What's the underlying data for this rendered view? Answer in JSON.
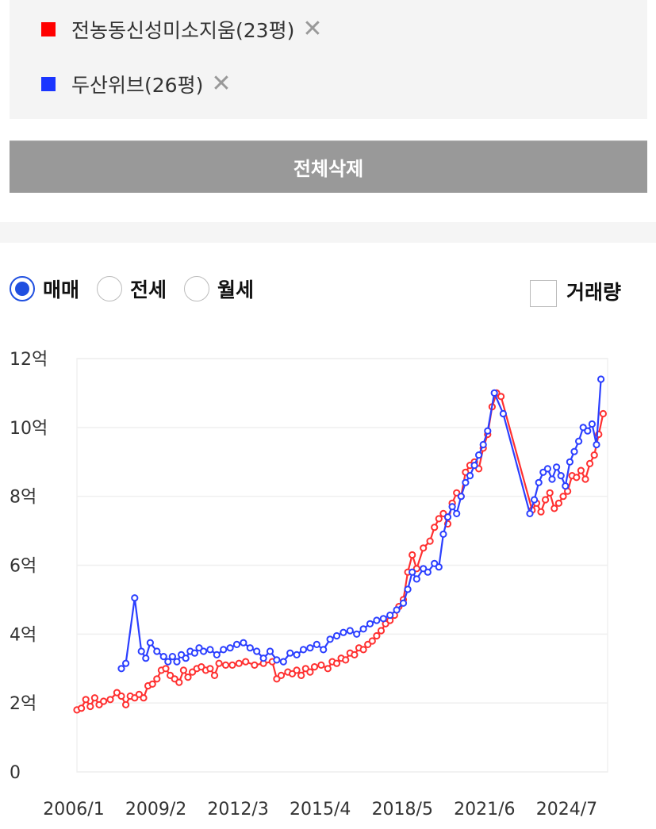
{
  "legend": {
    "items": [
      {
        "name": "전농동신성미소지움(23평)",
        "color": "#ff0000",
        "remove": "✕"
      },
      {
        "name": "두산위브(26평)",
        "color": "#1a35ff",
        "remove": "✕"
      }
    ]
  },
  "delete_all_label": "전체삭제",
  "filters": {
    "options": [
      {
        "label": "매매",
        "selected": true
      },
      {
        "label": "전세",
        "selected": false
      },
      {
        "label": "월세",
        "selected": false
      }
    ],
    "volume_label": "거래량",
    "volume_checked": false
  },
  "chart_data": {
    "type": "line",
    "title": "",
    "xlabel": "",
    "ylabel": "",
    "y_unit": "억",
    "ylim": [
      0,
      12
    ],
    "yticks": [
      0,
      2,
      4,
      6,
      8,
      10,
      12
    ],
    "ytick_labels": [
      "0",
      "2억",
      "4억",
      "6억",
      "8억",
      "10억",
      "12억"
    ],
    "xlim": [
      "2006-01",
      "2025-12"
    ],
    "xticks": [
      "2006-01",
      "2009-02",
      "2012-03",
      "2015-04",
      "2018-05",
      "2021-06",
      "2024-07"
    ],
    "xtick_labels": [
      "2006/1",
      "2009/2",
      "2012/3",
      "2015/4",
      "2018/5",
      "2021/6",
      "2024/7"
    ],
    "grid": true,
    "series": [
      {
        "name": "전농동신성미소지움(23평)",
        "color": "#ff3030",
        "points": [
          [
            "2006-01",
            1.8
          ],
          [
            "2006-03",
            1.85
          ],
          [
            "2006-05",
            2.1
          ],
          [
            "2006-07",
            1.9
          ],
          [
            "2006-09",
            2.15
          ],
          [
            "2006-11",
            1.95
          ],
          [
            "2007-01",
            2.05
          ],
          [
            "2007-04",
            2.1
          ],
          [
            "2007-07",
            2.3
          ],
          [
            "2007-09",
            2.2
          ],
          [
            "2007-11",
            1.95
          ],
          [
            "2008-01",
            2.2
          ],
          [
            "2008-03",
            2.15
          ],
          [
            "2008-05",
            2.25
          ],
          [
            "2008-07",
            2.15
          ],
          [
            "2008-09",
            2.5
          ],
          [
            "2008-11",
            2.55
          ],
          [
            "2009-01",
            2.7
          ],
          [
            "2009-03",
            2.95
          ],
          [
            "2009-05",
            3.0
          ],
          [
            "2009-07",
            2.8
          ],
          [
            "2009-09",
            2.7
          ],
          [
            "2009-11",
            2.6
          ],
          [
            "2010-01",
            2.95
          ],
          [
            "2010-03",
            2.75
          ],
          [
            "2010-05",
            2.9
          ],
          [
            "2010-07",
            3.0
          ],
          [
            "2010-09",
            3.05
          ],
          [
            "2010-11",
            2.95
          ],
          [
            "2011-01",
            3.0
          ],
          [
            "2011-03",
            2.8
          ],
          [
            "2011-05",
            3.15
          ],
          [
            "2011-08",
            3.1
          ],
          [
            "2011-11",
            3.1
          ],
          [
            "2012-02",
            3.15
          ],
          [
            "2012-05",
            3.2
          ],
          [
            "2012-09",
            3.1
          ],
          [
            "2013-01",
            3.15
          ],
          [
            "2013-05",
            3.2
          ],
          [
            "2013-07",
            2.7
          ],
          [
            "2013-09",
            2.8
          ],
          [
            "2013-12",
            2.9
          ],
          [
            "2014-02",
            2.85
          ],
          [
            "2014-04",
            2.95
          ],
          [
            "2014-06",
            2.8
          ],
          [
            "2014-08",
            3.0
          ],
          [
            "2014-10",
            2.9
          ],
          [
            "2014-12",
            3.05
          ],
          [
            "2015-03",
            3.1
          ],
          [
            "2015-06",
            3.0
          ],
          [
            "2015-08",
            3.2
          ],
          [
            "2015-10",
            3.15
          ],
          [
            "2015-12",
            3.3
          ],
          [
            "2016-02",
            3.25
          ],
          [
            "2016-04",
            3.45
          ],
          [
            "2016-06",
            3.4
          ],
          [
            "2016-08",
            3.6
          ],
          [
            "2016-10",
            3.55
          ],
          [
            "2016-12",
            3.7
          ],
          [
            "2017-02",
            3.8
          ],
          [
            "2017-04",
            3.95
          ],
          [
            "2017-06",
            4.1
          ],
          [
            "2017-08",
            4.3
          ],
          [
            "2017-10",
            4.4
          ],
          [
            "2017-12",
            4.55
          ],
          [
            "2018-02",
            4.8
          ],
          [
            "2018-04",
            5.0
          ],
          [
            "2018-06",
            5.8
          ],
          [
            "2018-08",
            6.3
          ],
          [
            "2018-10",
            5.9
          ],
          [
            "2019-01",
            6.5
          ],
          [
            "2019-04",
            6.7
          ],
          [
            "2019-06",
            7.1
          ],
          [
            "2019-08",
            7.35
          ],
          [
            "2019-10",
            7.5
          ],
          [
            "2019-12",
            7.2
          ],
          [
            "2020-02",
            7.8
          ],
          [
            "2020-04",
            8.1
          ],
          [
            "2020-06",
            8.0
          ],
          [
            "2020-08",
            8.7
          ],
          [
            "2020-10",
            8.9
          ],
          [
            "2020-12",
            9.0
          ],
          [
            "2021-02",
            8.8
          ],
          [
            "2021-04",
            9.4
          ],
          [
            "2021-06",
            9.8
          ],
          [
            "2021-08",
            10.6
          ],
          [
            "2021-10",
            11.0
          ],
          [
            "2021-12",
            10.9
          ],
          [
            "2023-02",
            7.6
          ],
          [
            "2023-04",
            7.8
          ],
          [
            "2023-06",
            7.55
          ],
          [
            "2023-08",
            7.9
          ],
          [
            "2023-10",
            8.1
          ],
          [
            "2023-12",
            7.65
          ],
          [
            "2024-02",
            7.8
          ],
          [
            "2024-04",
            8.0
          ],
          [
            "2024-06",
            8.15
          ],
          [
            "2024-08",
            8.6
          ],
          [
            "2024-10",
            8.55
          ],
          [
            "2024-12",
            8.75
          ],
          [
            "2025-02",
            8.5
          ],
          [
            "2025-04",
            8.95
          ],
          [
            "2025-06",
            9.2
          ],
          [
            "2025-08",
            9.8
          ],
          [
            "2025-10",
            10.4
          ]
        ]
      },
      {
        "name": "두산위브(26평)",
        "color": "#2b3fff",
        "points": [
          [
            "2007-09",
            3.0
          ],
          [
            "2007-11",
            3.15
          ],
          [
            "2008-03",
            5.05
          ],
          [
            "2008-06",
            3.5
          ],
          [
            "2008-08",
            3.3
          ],
          [
            "2008-10",
            3.75
          ],
          [
            "2009-01",
            3.5
          ],
          [
            "2009-04",
            3.35
          ],
          [
            "2009-06",
            3.2
          ],
          [
            "2009-08",
            3.35
          ],
          [
            "2009-10",
            3.2
          ],
          [
            "2009-12",
            3.4
          ],
          [
            "2010-02",
            3.3
          ],
          [
            "2010-04",
            3.5
          ],
          [
            "2010-06",
            3.45
          ],
          [
            "2010-08",
            3.6
          ],
          [
            "2010-10",
            3.5
          ],
          [
            "2011-01",
            3.55
          ],
          [
            "2011-04",
            3.4
          ],
          [
            "2011-07",
            3.55
          ],
          [
            "2011-10",
            3.6
          ],
          [
            "2012-01",
            3.7
          ],
          [
            "2012-04",
            3.75
          ],
          [
            "2012-07",
            3.6
          ],
          [
            "2012-10",
            3.5
          ],
          [
            "2013-01",
            3.3
          ],
          [
            "2013-04",
            3.5
          ],
          [
            "2013-07",
            3.25
          ],
          [
            "2013-10",
            3.2
          ],
          [
            "2014-01",
            3.45
          ],
          [
            "2014-04",
            3.4
          ],
          [
            "2014-07",
            3.55
          ],
          [
            "2014-10",
            3.6
          ],
          [
            "2015-01",
            3.7
          ],
          [
            "2015-04",
            3.55
          ],
          [
            "2015-07",
            3.85
          ],
          [
            "2015-10",
            3.95
          ],
          [
            "2016-01",
            4.05
          ],
          [
            "2016-04",
            4.1
          ],
          [
            "2016-07",
            4.0
          ],
          [
            "2016-10",
            4.15
          ],
          [
            "2017-01",
            4.3
          ],
          [
            "2017-04",
            4.4
          ],
          [
            "2017-07",
            4.45
          ],
          [
            "2017-10",
            4.55
          ],
          [
            "2018-01",
            4.7
          ],
          [
            "2018-04",
            4.9
          ],
          [
            "2018-06",
            5.3
          ],
          [
            "2018-08",
            5.8
          ],
          [
            "2018-10",
            5.6
          ],
          [
            "2019-01",
            5.9
          ],
          [
            "2019-03",
            5.8
          ],
          [
            "2019-06",
            6.05
          ],
          [
            "2019-08",
            5.95
          ],
          [
            "2019-10",
            6.9
          ],
          [
            "2019-12",
            7.4
          ],
          [
            "2020-02",
            7.7
          ],
          [
            "2020-04",
            7.5
          ],
          [
            "2020-06",
            8.0
          ],
          [
            "2020-08",
            8.4
          ],
          [
            "2020-10",
            8.6
          ],
          [
            "2020-12",
            8.9
          ],
          [
            "2021-02",
            9.2
          ],
          [
            "2021-04",
            9.5
          ],
          [
            "2021-06",
            9.9
          ],
          [
            "2021-09",
            11.0
          ],
          [
            "2022-01",
            10.4
          ],
          [
            "2023-01",
            7.5
          ],
          [
            "2023-03",
            7.9
          ],
          [
            "2023-05",
            8.4
          ],
          [
            "2023-07",
            8.7
          ],
          [
            "2023-09",
            8.8
          ],
          [
            "2023-11",
            8.5
          ],
          [
            "2024-01",
            8.85
          ],
          [
            "2024-03",
            8.6
          ],
          [
            "2024-05",
            8.3
          ],
          [
            "2024-07",
            9.0
          ],
          [
            "2024-09",
            9.3
          ],
          [
            "2024-11",
            9.6
          ],
          [
            "2025-01",
            10.0
          ],
          [
            "2025-03",
            9.9
          ],
          [
            "2025-05",
            10.1
          ],
          [
            "2025-07",
            9.5
          ],
          [
            "2025-09",
            11.4
          ]
        ]
      }
    ]
  }
}
